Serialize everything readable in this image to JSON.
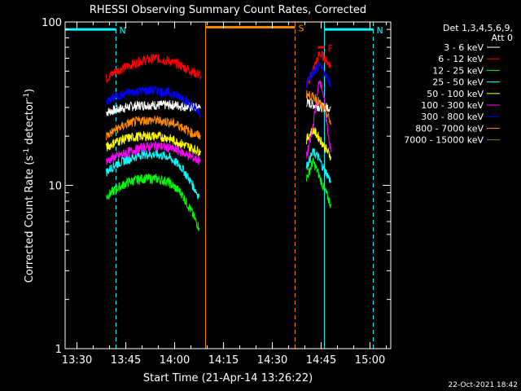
{
  "chart_data": {
    "type": "line",
    "title": "RHESSI Observing Summary Count Rates, Corrected",
    "xlabel": "Start Time (21-Apr-14 13:26:22)",
    "ylabel": "Corrected Count Rate (s",
    "ylabel_sup1": "-1",
    "ylabel_mid": " detector",
    "ylabel_sup2": "-1",
    "ylabel_end": ")",
    "y_scale": "log",
    "ylim": [
      1,
      100
    ],
    "y_ticks": [
      {
        "value": 1,
        "label": "1"
      },
      {
        "value": 10,
        "label": "10"
      },
      {
        "value": 100,
        "label": "100"
      }
    ],
    "xlim": [
      "13:26:22",
      "15:06:22"
    ],
    "x_ticks": [
      "13:30",
      "13:45",
      "14:00",
      "14:15",
      "14:30",
      "14:45",
      "15:00"
    ],
    "legend_header": [
      "Det 1,3,4,5,6,9,",
      "Att 0"
    ],
    "legend_placement": "right",
    "series": [
      {
        "name": "3 - 6 keV",
        "color": "#ffffff",
        "segments": [
          {
            "x": [
              "13:39:00",
              "13:45:00",
              "13:50:00",
              "13:55:00",
              "14:00:00",
              "14:05:00",
              "14:08:00"
            ],
            "y": [
              28,
              30,
              31,
              31,
              31,
              30,
              30
            ]
          },
          {
            "x": [
              "14:40:30",
              "14:43:00",
              "14:45:00",
              "14:48:00"
            ],
            "y": [
              32,
              31,
              30,
              30
            ]
          }
        ]
      },
      {
        "name": "6 - 12 keV",
        "color": "#ff0000",
        "segments": [
          {
            "x": [
              "13:39:00",
              "13:42:00",
              "13:46:00",
              "13:50:00",
              "13:54:00",
              "13:58:00",
              "14:02:00",
              "14:05:00",
              "14:08:00"
            ],
            "y": [
              45,
              50,
              54,
              58,
              60,
              58,
              54,
              50,
              47
            ]
          },
          {
            "x": [
              "14:40:30",
              "14:42:00",
              "14:43:30",
              "14:44:30",
              "14:45:30",
              "14:47:00",
              "14:48:00"
            ],
            "y": [
              40,
              48,
              57,
              64,
              62,
              57,
              54
            ]
          }
        ]
      },
      {
        "name": "12 - 25 keV",
        "color": "#00ff00",
        "segments": [
          {
            "x": [
              "13:39:00",
              "13:42:00",
              "13:46:00",
              "13:50:00",
              "13:54:00",
              "13:58:00",
              "14:02:00",
              "14:05:00",
              "14:07:30"
            ],
            "y": [
              8.5,
              9.5,
              10.5,
              11,
              11,
              10.5,
              9,
              7,
              5.5
            ]
          },
          {
            "x": [
              "14:40:30",
              "14:42:30",
              "14:44:00",
              "14:45:30",
              "14:47:00",
              "14:48:00"
            ],
            "y": [
              11,
              14,
              12,
              10,
              8.5,
              7.5
            ]
          }
        ]
      },
      {
        "name": "25 - 50 keV",
        "color": "#00ffff",
        "segments": [
          {
            "x": [
              "13:39:00",
              "13:42:00",
              "13:46:00",
              "13:50:00",
              "13:54:00",
              "13:58:00",
              "14:02:00",
              "14:05:00",
              "14:07:30"
            ],
            "y": [
              12,
              13.5,
              14.5,
              15.5,
              15.5,
              15,
              13,
              10.5,
              8.5
            ]
          },
          {
            "x": [
              "14:40:30",
              "14:42:30",
              "14:44:00",
              "14:45:30",
              "14:47:00",
              "14:48:00"
            ],
            "y": [
              13,
              16,
              15,
              13,
              11.5,
              10.5
            ]
          }
        ]
      },
      {
        "name": "50 - 100 keV",
        "color": "#ffff00",
        "segments": [
          {
            "x": [
              "13:39:00",
              "13:42:00",
              "13:46:00",
              "13:50:00",
              "13:54:00",
              "13:58:00",
              "14:02:00",
              "14:05:00",
              "14:08:00"
            ],
            "y": [
              17,
              18.5,
              19.5,
              20,
              20,
              19.5,
              18,
              17,
              16
            ]
          },
          {
            "x": [
              "14:40:30",
              "14:42:30",
              "14:44:00",
              "14:45:30",
              "14:47:00",
              "14:48:00"
            ],
            "y": [
              19,
              22,
              20,
              18,
              16,
              15
            ]
          }
        ]
      },
      {
        "name": "100 - 300 keV",
        "color": "#ff00ff",
        "segments": [
          {
            "x": [
              "13:39:00",
              "13:42:00",
              "13:46:00",
              "13:50:00",
              "13:54:00",
              "13:58:00",
              "14:02:00",
              "14:05:00",
              "14:08:00"
            ],
            "y": [
              14,
              15,
              16,
              17,
              17.5,
              17,
              16,
              15,
              14
            ]
          },
          {
            "x": [
              "14:40:30",
              "14:42:00",
              "14:43:30",
              "14:44:30",
              "14:45:30",
              "14:47:00",
              "14:48:00"
            ],
            "y": [
              15,
              20,
              32,
              45,
              38,
              22,
              16
            ]
          }
        ]
      },
      {
        "name": "300 - 800 keV",
        "color": "#0000ff",
        "segments": [
          {
            "x": [
              "13:39:00",
              "13:42:00",
              "13:46:00",
              "13:50:00",
              "13:54:00",
              "13:58:00",
              "14:02:00",
              "14:05:00",
              "14:08:00"
            ],
            "y": [
              32,
              35,
              37,
              38,
              38,
              37,
              35,
              31,
              27
            ]
          },
          {
            "x": [
              "14:40:30",
              "14:42:00",
              "14:43:30",
              "14:44:30",
              "14:45:30",
              "14:47:00",
              "14:48:00"
            ],
            "y": [
              42,
              48,
              52,
              56,
              52,
              45,
              40
            ]
          }
        ]
      },
      {
        "name": "800 - 7000 keV",
        "color": "#ff8c00",
        "segments": [
          {
            "x": [
              "13:39:00",
              "13:42:00",
              "13:46:00",
              "13:50:00",
              "13:54:00",
              "13:58:00",
              "14:02:00",
              "14:05:00",
              "14:08:00"
            ],
            "y": [
              20,
              22,
              24,
              25,
              25,
              24.5,
              23,
              21,
              20
            ]
          },
          {
            "x": [
              "14:40:30",
              "14:42:00",
              "14:43:30",
              "14:45:00",
              "14:46:30",
              "14:48:00"
            ],
            "y": [
              36,
              35,
              34,
              31,
              28,
              24
            ]
          }
        ]
      },
      {
        "name": "7000 - 15000 keV",
        "color": "#808000",
        "segments": []
      }
    ],
    "annotations": [
      {
        "label": "N",
        "color": "#00ffff",
        "x_start": "13:26:22",
        "x_end": "13:42:00",
        "y": 90
      },
      {
        "label": "N",
        "color": "#00ffff",
        "x_start": "14:46:00",
        "x_end": "15:01:00",
        "y": 90
      },
      {
        "label": "S",
        "color": "#ff8c00",
        "x_start": "14:09:30",
        "x_end": "14:37:00",
        "y": 93
      },
      {
        "label": "F",
        "color": "#ff0000",
        "x_start": "14:44:00",
        "x_end": "14:46:00",
        "y": 70
      }
    ],
    "vertical_markers": [
      {
        "x": "13:26:22",
        "color": "#00ffff",
        "style": "solid"
      },
      {
        "x": "13:42:00",
        "color": "#00ffff",
        "style": "dashed"
      },
      {
        "x": "14:09:30",
        "color": "#ff8c00",
        "style": "solid"
      },
      {
        "x": "14:37:00",
        "color": "#ff8c00",
        "style": "dashed"
      },
      {
        "x": "14:46:00",
        "color": "#00ffff",
        "style": "solid"
      },
      {
        "x": "15:01:00",
        "color": "#00ffff",
        "style": "dashed"
      }
    ],
    "footer": "22-Oct-2021 18:42"
  }
}
